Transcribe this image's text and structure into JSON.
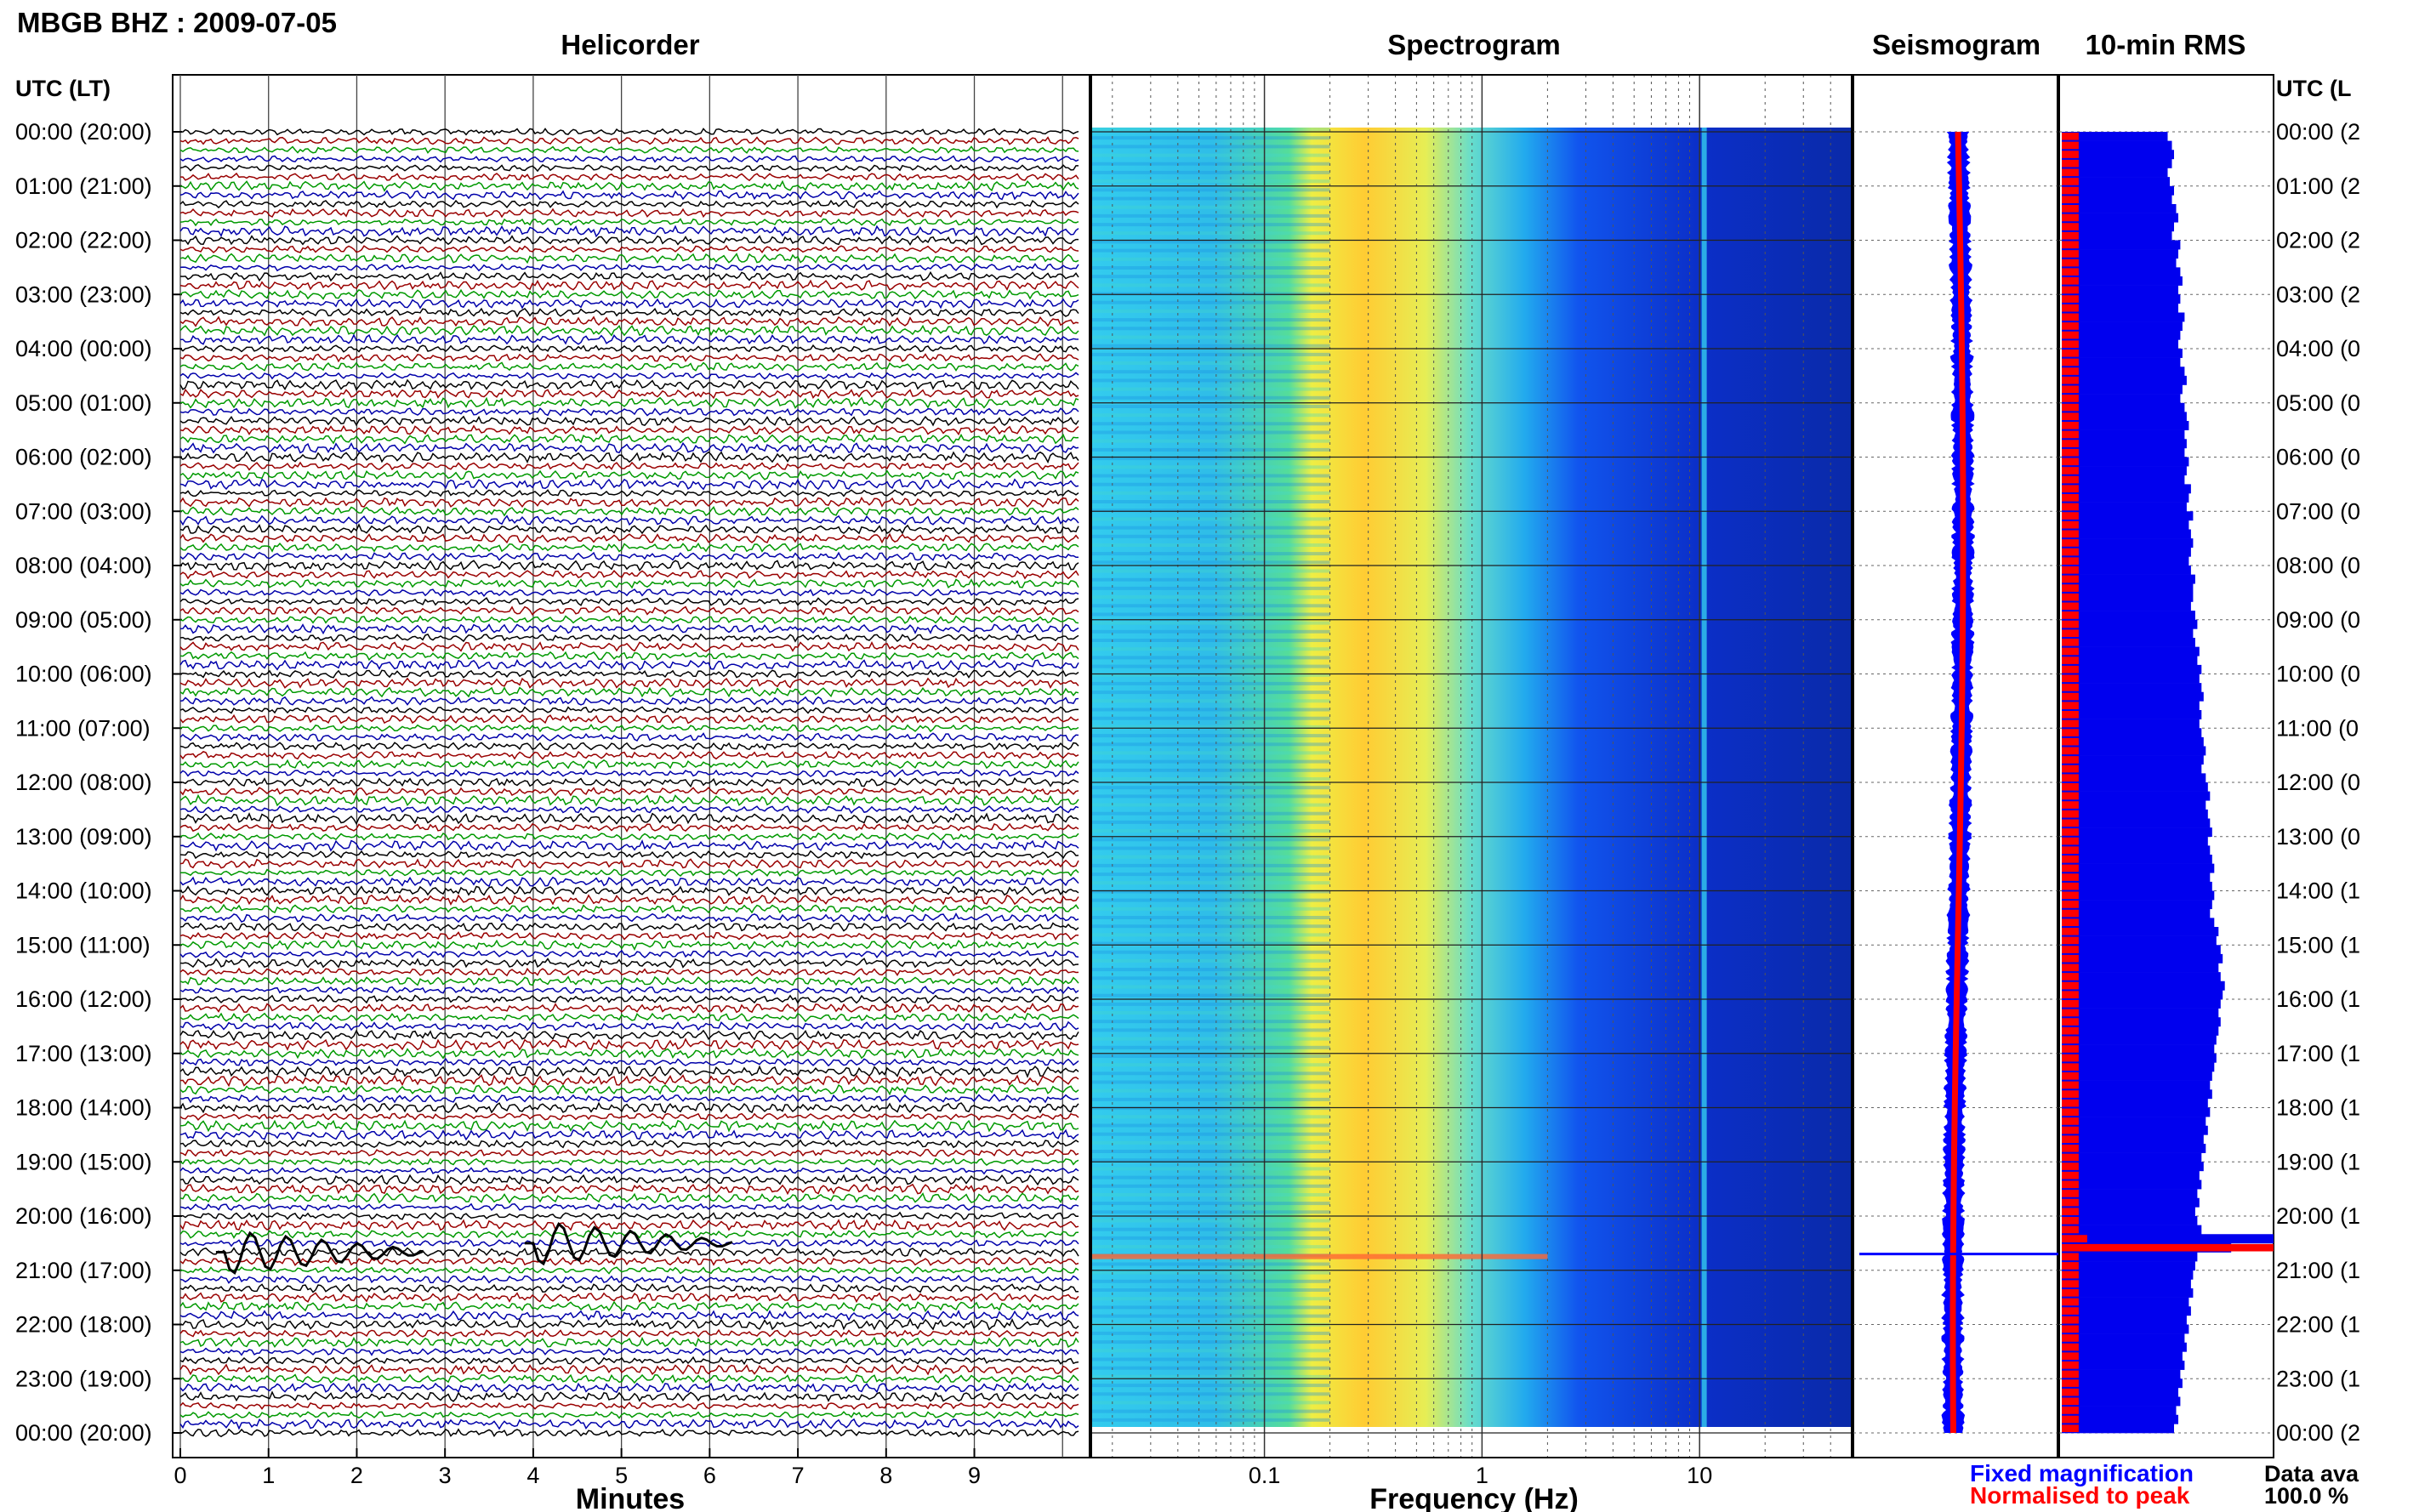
{
  "header": {
    "title": "MBGB BHZ : 2009-07-05"
  },
  "panels": {
    "helicorder": "Helicorder",
    "spectrogram": "Spectrogram",
    "seismogram": "Seismogram",
    "rms": "10-min RMS"
  },
  "axes": {
    "time_label_left": "UTC (LT)",
    "time_label_right": "UTC (L",
    "minutes_label": "Minutes",
    "freq_label": "Frequency (Hz)"
  },
  "legend": {
    "fixed": "Fixed magnification",
    "normalised": "Normalised to peak",
    "data_label": "Data ava",
    "data_value": "100.0 %"
  },
  "colors": {
    "fixed": "#0000ff",
    "normalised": "#ff0000",
    "trace_cycle": [
      "#000000",
      "#990000",
      "#009900",
      "#0000aa"
    ],
    "spectrogram_scale": [
      "#00008c",
      "#0022dd",
      "#0077ff",
      "#33ccee",
      "#66e8aa",
      "#ffff33",
      "#ff8800"
    ]
  },
  "chart_data": [
    {
      "type": "line",
      "name": "helicorder",
      "title": "Helicorder",
      "xlabel": "Minutes",
      "xlim": [
        0,
        10
      ],
      "x_ticks": [
        "0",
        "1",
        "2",
        "3",
        "4",
        "5",
        "6",
        "7",
        "8",
        "9"
      ],
      "hour_labels": [
        "00:00 (20:00)",
        "01:00 (21:00)",
        "02:00 (22:00)",
        "03:00 (23:00)",
        "04:00 (00:00)",
        "05:00 (01:00)",
        "06:00 (02:00)",
        "07:00 (03:00)",
        "08:00 (04:00)",
        "09:00 (05:00)",
        "10:00 (06:00)",
        "11:00 (07:00)",
        "12:00 (08:00)",
        "13:00 (09:00)",
        "14:00 (10:00)",
        "15:00 (11:00)",
        "16:00 (12:00)",
        "17:00 (13:00)",
        "18:00 (14:00)",
        "19:00 (15:00)",
        "20:00 (16:00)",
        "21:00 (17:00)",
        "22:00 (18:00)",
        "23:00 (19:00)",
        "00:00 (20:00)"
      ],
      "right_labels": [
        "00:00 (2",
        "01:00 (2",
        "02:00 (2",
        "03:00 (2",
        "04:00 (0",
        "05:00 (0",
        "06:00 (0",
        "07:00 (0",
        "08:00 (0",
        "09:00 (0",
        "10:00 (0",
        "11:00 (0",
        "12:00 (0",
        "13:00 (0",
        "14:00 (1",
        "15:00 (1",
        "16:00 (1",
        "17:00 (1",
        "18:00 (1",
        "19:00 (1",
        "20:00 (1",
        "21:00 (1",
        "22:00 (1",
        "23:00 (1",
        "00:00 (2"
      ],
      "lines_per_hour": 6,
      "events_utc": [
        {
          "time": "20:40",
          "minute": 0.5,
          "amplitude": "large"
        },
        {
          "time": "20:30",
          "minute": 4.0,
          "amplitude": "large"
        }
      ]
    },
    {
      "type": "heatmap",
      "name": "spectrogram",
      "title": "Spectrogram",
      "xlabel": "Frequency (Hz)",
      "x_scale": "log",
      "xlim": [
        0.016,
        50
      ],
      "x_ticks": [
        "0.1",
        "1",
        "10"
      ],
      "peak_band_hz": [
        0.2,
        0.6
      ],
      "persistent_line_hz": 10.5
    },
    {
      "type": "line",
      "name": "seismogram",
      "title": "Seismogram",
      "series": [
        {
          "name": "Fixed magnification",
          "color": "#0000ff"
        },
        {
          "name": "Normalised to peak",
          "color": "#ff0000"
        }
      ]
    },
    {
      "type": "bar",
      "name": "rms",
      "title": "10-min RMS",
      "categories": "10-minute intervals 00:00-24:00",
      "fixed_magnification": [
        0.5,
        0.52,
        0.53,
        0.52,
        0.5,
        0.51,
        0.53,
        0.52,
        0.54,
        0.55,
        0.53,
        0.52,
        0.56,
        0.55,
        0.54,
        0.56,
        0.57,
        0.55,
        0.56,
        0.55,
        0.58,
        0.57,
        0.56,
        0.55,
        0.57,
        0.56,
        0.58,
        0.59,
        0.57,
        0.56,
        0.58,
        0.59,
        0.6,
        0.58,
        0.59,
        0.58,
        0.6,
        0.59,
        0.58,
        0.61,
        0.6,
        0.59,
        0.62,
        0.6,
        0.61,
        0.62,
        0.61,
        0.6,
        0.61,
        0.63,
        0.62,
        0.62,
        0.61,
        0.63,
        0.64,
        0.62,
        0.63,
        0.65,
        0.64,
        0.66,
        0.65,
        0.66,
        0.67,
        0.65,
        0.66,
        0.65,
        0.66,
        0.67,
        0.68,
        0.67,
        0.66,
        0.68,
        0.69,
        0.7,
        0.68,
        0.69,
        0.7,
        0.71,
        0.69,
        0.7,
        0.71,
        0.72,
        0.7,
        0.71,
        0.72,
        0.71,
        0.7,
        0.72,
        0.74,
        0.73,
        0.75,
        0.76,
        0.74,
        0.75,
        0.77,
        0.76,
        0.75,
        0.74,
        0.75,
        0.74,
        0.73,
        0.72,
        0.73,
        0.72,
        0.71,
        0.7,
        0.71,
        0.69,
        0.7,
        0.68,
        0.69,
        0.67,
        0.68,
        0.66,
        0.67,
        0.65,
        0.66,
        0.64,
        0.65,
        0.63,
        0.64,
        0.66,
        1.0,
        0.8,
        0.64,
        0.63,
        0.62,
        0.61,
        0.62,
        0.6,
        0.61,
        0.59,
        0.6,
        0.58,
        0.59,
        0.57,
        0.58,
        0.56,
        0.57,
        0.55,
        0.56,
        0.54,
        0.55,
        0.53
      ],
      "normalised_to_peak": [
        0.08,
        0.08,
        0.08,
        0.08,
        0.08,
        0.08,
        0.08,
        0.08,
        0.08,
        0.08,
        0.08,
        0.08,
        0.08,
        0.08,
        0.08,
        0.08,
        0.08,
        0.08,
        0.08,
        0.08,
        0.08,
        0.08,
        0.08,
        0.08,
        0.08,
        0.08,
        0.08,
        0.08,
        0.08,
        0.08,
        0.08,
        0.08,
        0.08,
        0.08,
        0.08,
        0.08,
        0.08,
        0.08,
        0.08,
        0.08,
        0.08,
        0.08,
        0.08,
        0.08,
        0.08,
        0.08,
        0.08,
        0.08,
        0.08,
        0.08,
        0.08,
        0.08,
        0.08,
        0.08,
        0.08,
        0.08,
        0.08,
        0.08,
        0.08,
        0.08,
        0.08,
        0.08,
        0.08,
        0.08,
        0.08,
        0.08,
        0.08,
        0.08,
        0.08,
        0.08,
        0.08,
        0.08,
        0.08,
        0.08,
        0.08,
        0.08,
        0.08,
        0.08,
        0.08,
        0.08,
        0.08,
        0.08,
        0.08,
        0.08,
        0.08,
        0.08,
        0.08,
        0.08,
        0.08,
        0.08,
        0.08,
        0.08,
        0.08,
        0.08,
        0.08,
        0.08,
        0.08,
        0.08,
        0.08,
        0.08,
        0.08,
        0.08,
        0.08,
        0.08,
        0.08,
        0.08,
        0.08,
        0.08,
        0.08,
        0.08,
        0.08,
        0.08,
        0.08,
        0.08,
        0.08,
        0.08,
        0.08,
        0.08,
        0.08,
        0.08,
        0.08,
        0.08,
        0.12,
        1.0,
        0.08,
        0.08,
        0.08,
        0.08,
        0.08,
        0.08,
        0.08,
        0.08,
        0.08,
        0.08,
        0.08,
        0.08,
        0.08,
        0.08,
        0.08,
        0.08,
        0.08,
        0.08,
        0.08,
        0.08
      ]
    }
  ]
}
